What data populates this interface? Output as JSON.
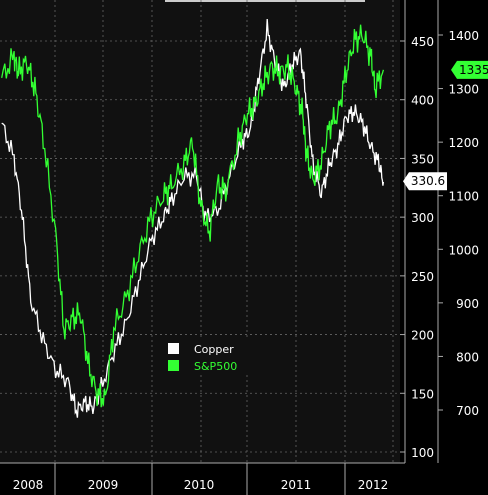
{
  "chart_data": {
    "type": "line",
    "title": "",
    "x_ticks": [
      "2008",
      "2009",
      "2010",
      "2011",
      "2012"
    ],
    "y_left": {
      "label": "",
      "range": [
        100,
        475
      ],
      "ticks": [
        100,
        150,
        200,
        250,
        300,
        350,
        400,
        450
      ]
    },
    "y_right": {
      "label": "",
      "range": [
        600,
        1450
      ],
      "ticks": [
        700,
        800,
        900,
        1000,
        1100,
        1200,
        1300,
        1400
      ]
    },
    "legend": [
      {
        "name": "Copper",
        "color": "#ffffff"
      },
      {
        "name": "S&P500",
        "color": "#33ff33"
      }
    ],
    "legend_placement": "center",
    "grid": true,
    "last_values": {
      "Copper": "330.6",
      "S&P500": "1335"
    },
    "series": [
      {
        "name": "Copper",
        "color": "#ffffff",
        "axis": "left",
        "points": [
          [
            2007.95,
            380
          ],
          [
            2008.1,
            350
          ],
          [
            2008.2,
            300
          ],
          [
            2008.3,
            230
          ],
          [
            2008.45,
            195
          ],
          [
            2008.6,
            170
          ],
          [
            2008.75,
            160
          ],
          [
            2008.85,
            135
          ],
          [
            2008.95,
            142
          ],
          [
            2009.05,
            138
          ],
          [
            2009.15,
            155
          ],
          [
            2009.3,
            185
          ],
          [
            2009.45,
            210
          ],
          [
            2009.6,
            245
          ],
          [
            2009.75,
            280
          ],
          [
            2009.9,
            300
          ],
          [
            2010.0,
            315
          ],
          [
            2010.15,
            335
          ],
          [
            2010.3,
            335
          ],
          [
            2010.4,
            300
          ],
          [
            2010.55,
            305
          ],
          [
            2010.7,
            335
          ],
          [
            2010.85,
            365
          ],
          [
            2010.95,
            375
          ],
          [
            2011.05,
            420
          ],
          [
            2011.15,
            460
          ],
          [
            2011.25,
            430
          ],
          [
            2011.35,
            410
          ],
          [
            2011.45,
            430
          ],
          [
            2011.55,
            440
          ],
          [
            2011.62,
            400
          ],
          [
            2011.7,
            345
          ],
          [
            2011.8,
            320
          ],
          [
            2011.9,
            345
          ],
          [
            2012.0,
            360
          ],
          [
            2012.1,
            385
          ],
          [
            2012.2,
            390
          ],
          [
            2012.3,
            380
          ],
          [
            2012.4,
            360
          ],
          [
            2012.5,
            345
          ],
          [
            2012.55,
            330
          ]
        ]
      },
      {
        "name": "S&P500",
        "color": "#33ff33",
        "axis": "right",
        "points": [
          [
            2007.95,
            1320
          ],
          [
            2008.1,
            1360
          ],
          [
            2008.15,
            1330
          ],
          [
            2008.25,
            1350
          ],
          [
            2008.35,
            1300
          ],
          [
            2008.45,
            1210
          ],
          [
            2008.6,
            1030
          ],
          [
            2008.7,
            850
          ],
          [
            2008.8,
            870
          ],
          [
            2008.9,
            880
          ],
          [
            2009.0,
            780
          ],
          [
            2009.1,
            730
          ],
          [
            2009.2,
            720
          ],
          [
            2009.3,
            850
          ],
          [
            2009.45,
            910
          ],
          [
            2009.6,
            990
          ],
          [
            2009.75,
            1060
          ],
          [
            2009.9,
            1100
          ],
          [
            2010.0,
            1120
          ],
          [
            2010.15,
            1160
          ],
          [
            2010.25,
            1200
          ],
          [
            2010.35,
            1080
          ],
          [
            2010.45,
            1030
          ],
          [
            2010.55,
            1120
          ],
          [
            2010.65,
            1110
          ],
          [
            2010.8,
            1200
          ],
          [
            2010.9,
            1250
          ],
          [
            2011.0,
            1270
          ],
          [
            2011.1,
            1310
          ],
          [
            2011.2,
            1340
          ],
          [
            2011.3,
            1330
          ],
          [
            2011.4,
            1340
          ],
          [
            2011.5,
            1300
          ],
          [
            2011.58,
            1250
          ],
          [
            2011.62,
            1180
          ],
          [
            2011.7,
            1130
          ],
          [
            2011.8,
            1160
          ],
          [
            2011.9,
            1230
          ],
          [
            2012.0,
            1250
          ],
          [
            2012.1,
            1330
          ],
          [
            2012.2,
            1390
          ],
          [
            2012.3,
            1400
          ],
          [
            2012.4,
            1360
          ],
          [
            2012.45,
            1300
          ],
          [
            2012.55,
            1335
          ]
        ]
      }
    ]
  }
}
